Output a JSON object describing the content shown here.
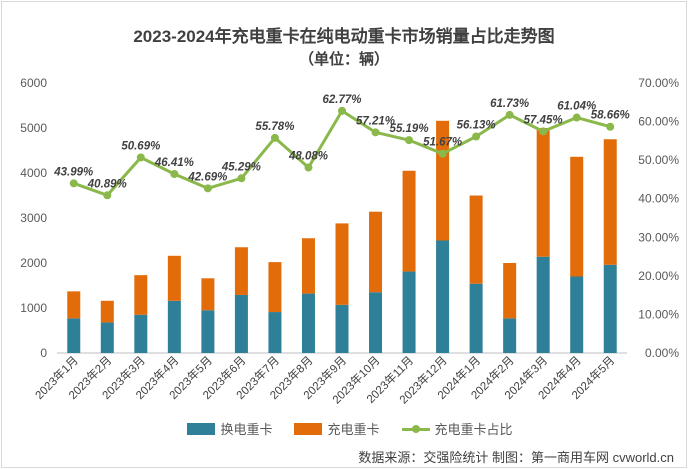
{
  "chart_data": {
    "type": "bar",
    "title": "2023-2024年充电重卡在纯电动重卡市场销量占比走势图",
    "subtitle": "（单位：辆）",
    "categories": [
      "2023年1月",
      "2023年2月",
      "2023年3月",
      "2023年4月",
      "2023年5月",
      "2023年6月",
      "2023年7月",
      "2023年8月",
      "2023年9月",
      "2023年10月",
      "2023年11月",
      "2023年12月",
      "2024年1月",
      "2024年2月",
      "2024年3月",
      "2024年4月",
      "2024年5月"
    ],
    "series": [
      {
        "name": "换电重卡",
        "color": "#2e7f98",
        "values": [
          770,
          680,
          850,
          1160,
          950,
          1290,
          910,
          1320,
          1070,
          1350,
          1810,
          2500,
          1540,
          770,
          2140,
          1700,
          1960
        ]
      },
      {
        "name": "充电重卡",
        "color": "#e36c0a",
        "values": [
          600,
          480,
          880,
          1000,
          710,
          1060,
          1110,
          1230,
          1810,
          1790,
          2240,
          2660,
          1960,
          1230,
          2860,
          2660,
          2790
        ]
      },
      {
        "name": "充电重卡占比",
        "color": "#8ab84a",
        "type": "line",
        "axis": "right",
        "values": [
          43.99,
          40.89,
          50.69,
          46.41,
          42.69,
          45.29,
          55.78,
          48.08,
          62.77,
          57.21,
          55.19,
          51.67,
          56.13,
          61.73,
          57.45,
          61.04,
          58.66
        ],
        "labels": [
          "43.99%",
          "40.89%",
          "50.69%",
          "46.41%",
          "42.69%",
          "45.29%",
          "55.78%",
          "48.08%",
          "62.77%",
          "57.21%",
          "55.19%",
          "51.67%",
          "56.13%",
          "61.73%",
          "57.45%",
          "61.04%",
          "58.66%"
        ]
      }
    ],
    "ylim": [
      0,
      6000
    ],
    "yticks": [
      "0",
      "1000",
      "2000",
      "3000",
      "4000",
      "5000",
      "6000"
    ],
    "y2lim": [
      0,
      70
    ],
    "y2ticks": [
      "0.00%",
      "10.00%",
      "20.00%",
      "30.00%",
      "40.00%",
      "50.00%",
      "60.00%",
      "70.00%"
    ],
    "stacked": true,
    "grid": false,
    "legend_position": "bottom"
  },
  "source_note": "数据来源：交强险统计 制图：第一商用车网 cvworld.cn"
}
